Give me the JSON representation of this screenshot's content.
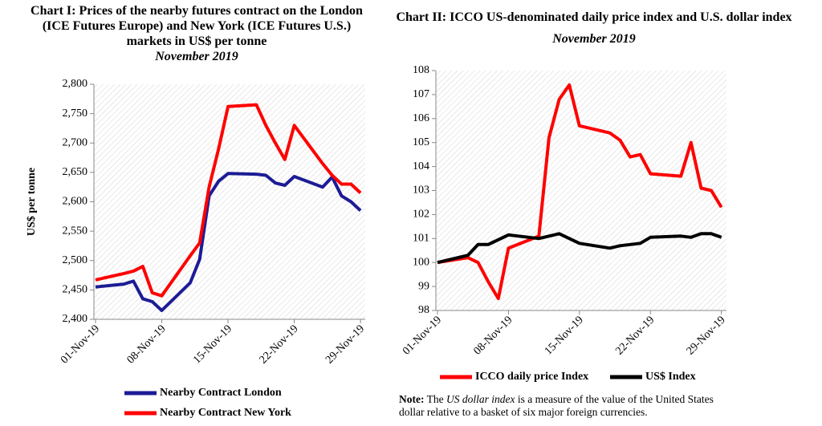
{
  "chart_data": [
    {
      "type": "line",
      "title": "Chart I: Prices of the nearby futures contract on the London (ICE Futures Europe) and New York (ICE Futures U.S.) markets in US$ per tonne",
      "subtitle": "November 2019",
      "y_label": "US$ per tonne",
      "x": [
        1,
        4,
        5,
        6,
        7,
        8,
        11,
        12,
        13,
        14,
        15,
        18,
        19,
        20,
        21,
        22,
        25,
        26,
        27,
        28,
        29
      ],
      "xlim": [
        1,
        29.5
      ],
      "xticks": [
        {
          "value": 1,
          "label": "01-Nov-19"
        },
        {
          "value": 8,
          "label": "08-Nov-19"
        },
        {
          "value": 15,
          "label": "15-Nov-19"
        },
        {
          "value": 22,
          "label": "22-Nov-19"
        },
        {
          "value": 29,
          "label": "29-Nov-19"
        }
      ],
      "ylim": [
        2400,
        2800
      ],
      "yticks": [
        {
          "value": 2400,
          "label": "2,400"
        },
        {
          "value": 2450,
          "label": "2,450"
        },
        {
          "value": 2500,
          "label": "2,500"
        },
        {
          "value": 2550,
          "label": "2,550"
        },
        {
          "value": 2600,
          "label": "2,600"
        },
        {
          "value": 2650,
          "label": "2,650"
        },
        {
          "value": 2700,
          "label": "2,700"
        },
        {
          "value": 2750,
          "label": "2,750"
        },
        {
          "value": 2800,
          "label": "2,800"
        }
      ],
      "grid": false,
      "legend": "bottom-vertical",
      "series": [
        {
          "name": "Nearby Contract London",
          "color": "#1c1c96",
          "values": [
            2455,
            2460,
            2465,
            2435,
            2430,
            2415,
            2462,
            2502,
            2610,
            2635,
            2648,
            2647,
            2645,
            2632,
            2628,
            2643,
            2625,
            2642,
            2610,
            2600,
            2585
          ]
        },
        {
          "name": "Nearby Contract New York",
          "color": "#ff0000",
          "values": [
            2467,
            2478,
            2482,
            2490,
            2445,
            2440,
            2508,
            2530,
            2625,
            2690,
            2762,
            2765,
            2730,
            2700,
            2672,
            2730,
            2665,
            2645,
            2630,
            2630,
            2615
          ]
        }
      ]
    },
    {
      "type": "line",
      "title": "Chart II: ICCO US-denominated daily price index and U.S. dollar index",
      "subtitle": "November 2019",
      "x": [
        1,
        4,
        5,
        6,
        7,
        8,
        11,
        12,
        13,
        14,
        15,
        18,
        19,
        20,
        21,
        22,
        25,
        26,
        27,
        28,
        29
      ],
      "xlim": [
        1,
        29.5
      ],
      "xticks": [
        {
          "value": 1,
          "label": "01-Nov-19"
        },
        {
          "value": 8,
          "label": "08-Nov-19"
        },
        {
          "value": 15,
          "label": "15-Nov-19"
        },
        {
          "value": 22,
          "label": "22-Nov-19"
        },
        {
          "value": 29,
          "label": "29-Nov-19"
        }
      ],
      "ylim": [
        98,
        108
      ],
      "yticks": [
        98,
        99,
        100,
        101,
        102,
        103,
        104,
        105,
        106,
        107,
        108
      ],
      "grid": false,
      "legend": "bottom-horizontal",
      "series": [
        {
          "name": "ICCO daily price Index",
          "color": "#ff0000",
          "values": [
            100.0,
            100.2,
            100.0,
            99.2,
            98.5,
            100.6,
            101.1,
            105.2,
            106.8,
            107.4,
            105.7,
            105.4,
            105.1,
            104.4,
            104.5,
            103.7,
            103.6,
            105.0,
            103.1,
            103.0,
            102.3
          ]
        },
        {
          "name": "US$ Index",
          "color": "#000000",
          "values": [
            100.0,
            100.3,
            100.75,
            100.75,
            100.95,
            101.15,
            101.0,
            101.1,
            101.2,
            101.0,
            100.8,
            100.6,
            100.7,
            100.75,
            100.8,
            101.05,
            101.1,
            101.05,
            101.2,
            101.2,
            101.05
          ]
        }
      ]
    }
  ],
  "note": {
    "label": "Note:",
    "lead": "The",
    "emphasis": "US dollar index",
    "text": "is a measure of the value of the United States dollar relative to a basket of six major foreign currencies."
  }
}
